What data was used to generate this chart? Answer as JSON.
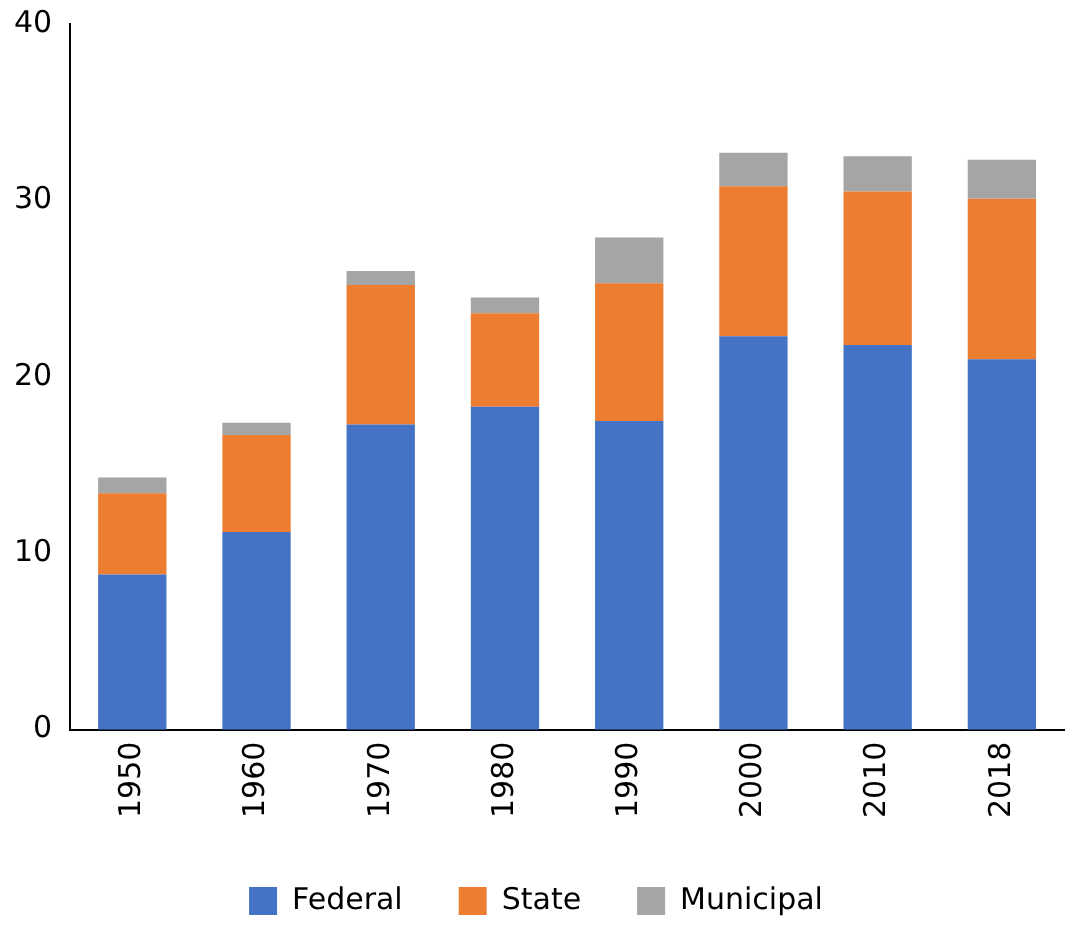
{
  "chart_data": {
    "type": "bar",
    "stacked": true,
    "categories": [
      "1950",
      "1960",
      "1970",
      "1980",
      "1990",
      "2000",
      "2010",
      "2018"
    ],
    "series": [
      {
        "name": "Federal",
        "color": "#4472c4",
        "values": [
          8.8,
          11.2,
          17.3,
          18.3,
          17.5,
          22.3,
          21.8,
          21.0
        ]
      },
      {
        "name": "State",
        "color": "#ed7d31",
        "values": [
          4.6,
          5.5,
          7.9,
          5.3,
          7.8,
          8.5,
          8.7,
          9.1
        ]
      },
      {
        "name": "Municipal",
        "color": "#a5a5a5",
        "values": [
          0.9,
          0.7,
          0.8,
          0.9,
          2.6,
          1.9,
          2.0,
          2.2
        ]
      }
    ],
    "ylim": [
      0,
      40
    ],
    "yticks": [
      0,
      10,
      20,
      30,
      40
    ],
    "grid": false,
    "legend": "bottom"
  }
}
